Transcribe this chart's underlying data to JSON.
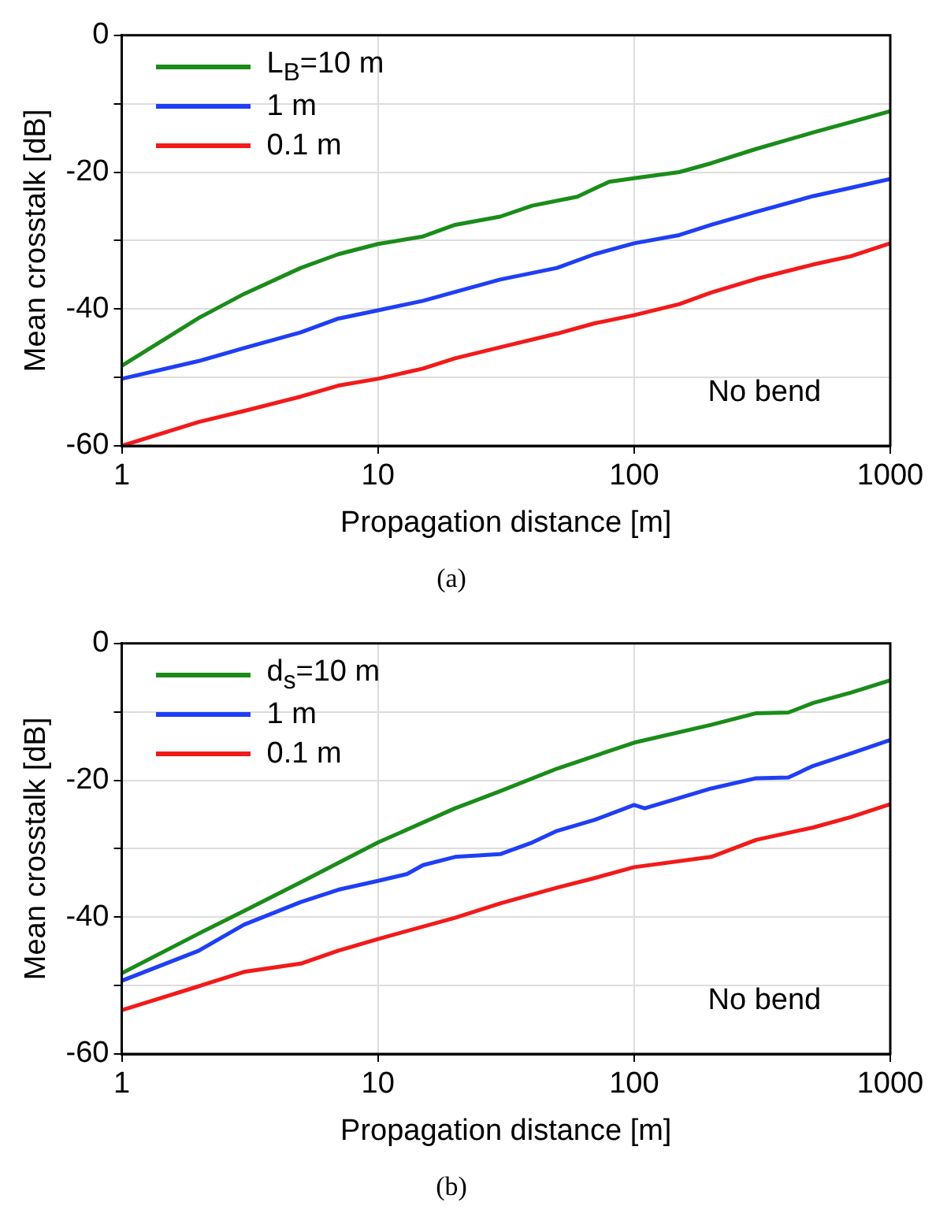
{
  "chart_data": [
    {
      "type": "line",
      "title": "(a)",
      "xlabel": "Propagation distance [m]",
      "ylabel": "Mean crosstalk [dB]",
      "log": "x",
      "xlim": [
        1,
        1000
      ],
      "xticks": [
        1,
        10,
        100,
        1000
      ],
      "ylim": [
        -60,
        0
      ],
      "yticks": [
        -60,
        {
          "value": -50,
          "label": null
        },
        -40,
        {
          "value": -30,
          "label": null
        },
        -20,
        {
          "value": -10,
          "label": null
        },
        0
      ],
      "grid": true,
      "legend": "top left",
      "annotations": [
        "No bend"
      ],
      "series": [
        {
          "name": "L$_{B}$=10 m",
          "color": "#1a8c1a",
          "x": [
            1,
            2,
            3,
            5,
            7,
            10,
            15,
            20,
            30,
            40,
            60,
            80,
            100,
            150,
            200,
            300,
            500,
            700,
            1000
          ],
          "values": [
            -48.3,
            -41.3,
            -37.8,
            -34,
            -32,
            -30.5,
            -29.4,
            -27.7,
            -26.5,
            -24.9,
            -23.6,
            -21.4,
            -20.9,
            -20,
            -18.7,
            -16.6,
            -14.2,
            -12.7,
            -11.1
          ]
        },
        {
          "name": "1 m",
          "color": "#1f3ff5",
          "x": [
            1,
            2,
            3,
            5,
            7,
            10,
            15,
            20,
            30,
            50,
            70,
            100,
            150,
            200,
            300,
            500,
            700,
            1000
          ],
          "values": [
            -50.2,
            -47.6,
            -45.7,
            -43.4,
            -41.4,
            -40.2,
            -38.8,
            -37.5,
            -35.7,
            -34,
            -32,
            -30.4,
            -29.2,
            -27.7,
            -25.8,
            -23.5,
            -22.3,
            -21
          ]
        },
        {
          "name": "0.1 m",
          "color": "#f21a1a",
          "x": [
            1,
            2,
            3,
            5,
            7,
            10,
            15,
            20,
            30,
            50,
            70,
            100,
            150,
            200,
            300,
            500,
            700,
            1000
          ],
          "values": [
            -60,
            -56.5,
            -54.9,
            -52.8,
            -51.2,
            -50.2,
            -48.7,
            -47.2,
            -45.6,
            -43.6,
            -42.1,
            -40.9,
            -39.3,
            -37.6,
            -35.6,
            -33.5,
            -32.3,
            -30.4
          ]
        }
      ]
    },
    {
      "type": "line",
      "title": "(b)",
      "xlabel": "Propagation distance [m]",
      "ylabel": "Mean crosstalk [dB]",
      "log": "x",
      "xlim": [
        1,
        1000
      ],
      "xticks": [
        1,
        10,
        100,
        1000
      ],
      "ylim": [
        -60,
        0
      ],
      "yticks": [
        -60,
        {
          "value": -50,
          "label": null
        },
        -40,
        {
          "value": -30,
          "label": null
        },
        -20,
        {
          "value": -10,
          "label": null
        },
        0
      ],
      "grid": true,
      "legend": "top left",
      "annotations": [
        "No bend"
      ],
      "series": [
        {
          "name": "d$_{s}$=10 m",
          "color": "#1a8c1a",
          "x": [
            1,
            2,
            3,
            5,
            10,
            20,
            30,
            50,
            100,
            200,
            300,
            400,
            500,
            700,
            1000
          ],
          "values": [
            -48.2,
            -42.4,
            -39.1,
            -34.9,
            -29.1,
            -24.1,
            -21.6,
            -18.3,
            -14.5,
            -11.9,
            -10.2,
            -10.1,
            -8.7,
            -7.2,
            -5.4
          ]
        },
        {
          "name": "1 m",
          "color": "#1f3ff5",
          "x": [
            1,
            2,
            3,
            5,
            7,
            10,
            13,
            15,
            20,
            30,
            40,
            50,
            70,
            100,
            110,
            200,
            300,
            400,
            500,
            700,
            1000
          ],
          "values": [
            -49.3,
            -44.9,
            -41.1,
            -37.8,
            -36,
            -34.7,
            -33.7,
            -32.4,
            -31.2,
            -30.8,
            -29.1,
            -27.4,
            -25.8,
            -23.6,
            -24.1,
            -21.2,
            -19.7,
            -19.6,
            -17.9,
            -16.1,
            -14.1
          ]
        },
        {
          "name": "0.1 m",
          "color": "#f21a1a",
          "x": [
            1,
            2,
            3,
            5,
            7,
            10,
            20,
            30,
            50,
            70,
            100,
            200,
            300,
            500,
            700,
            1000
          ],
          "values": [
            -53.6,
            -50.1,
            -48,
            -46.8,
            -44.9,
            -43.2,
            -40.1,
            -38,
            -35.7,
            -34.3,
            -32.7,
            -31.2,
            -28.7,
            -26.9,
            -25.4,
            -23.5
          ]
        }
      ]
    }
  ]
}
